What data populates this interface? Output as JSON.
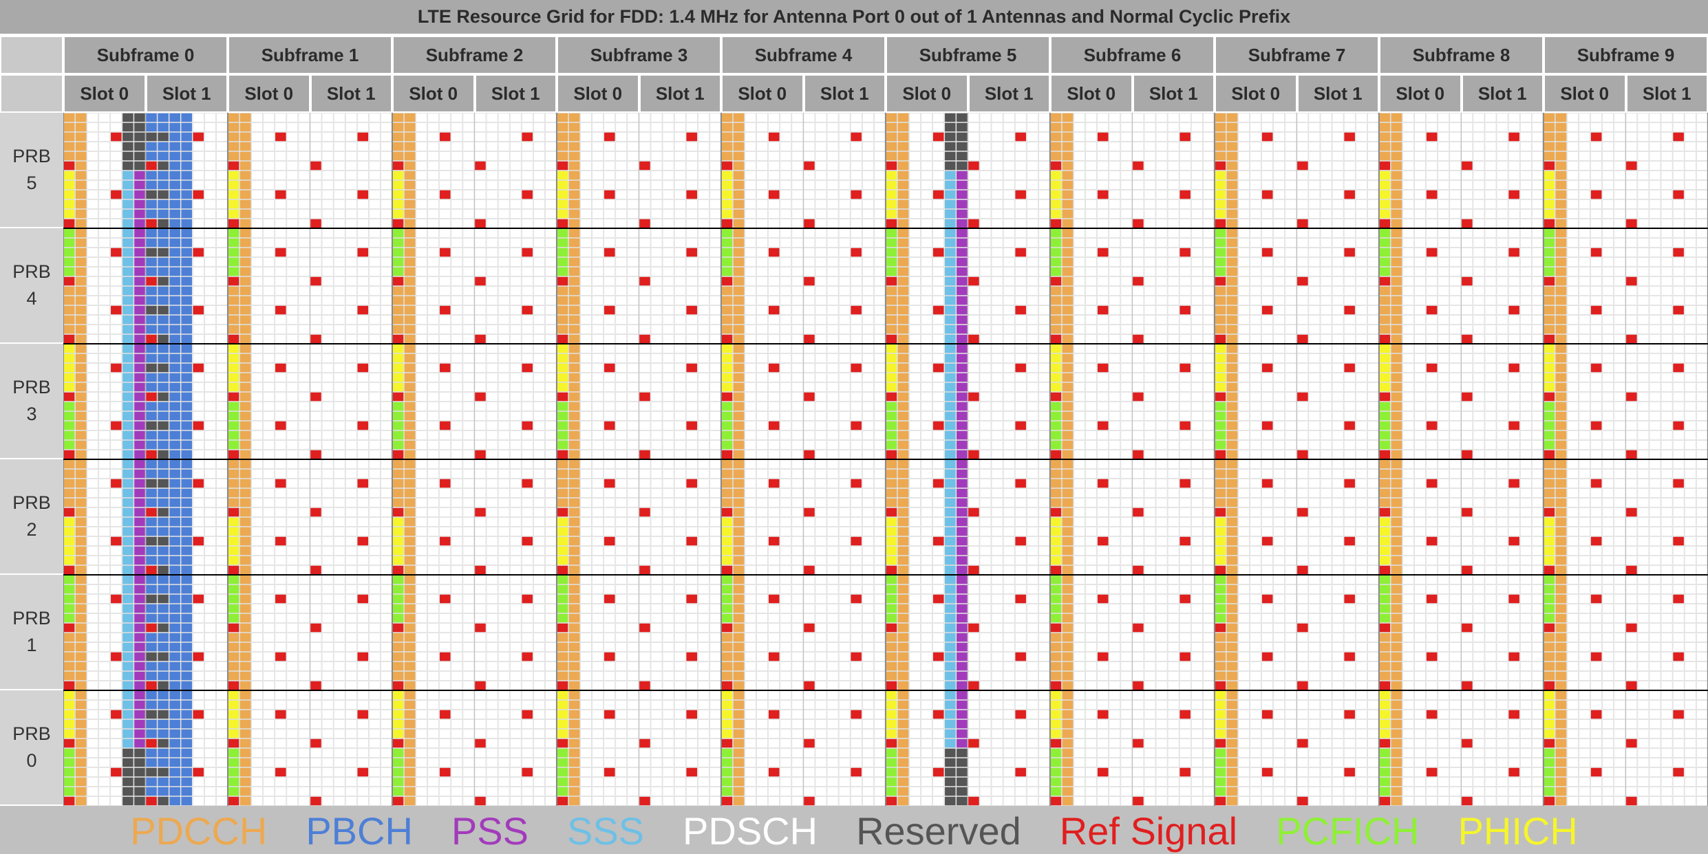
{
  "title": "LTE Resource Grid for FDD: 1.4 MHz for Antenna Port 0 out of 1 Antennas and Normal Cyclic Prefix",
  "subframes": [
    "Subframe 0",
    "Subframe 1",
    "Subframe 2",
    "Subframe 3",
    "Subframe 4",
    "Subframe 5",
    "Subframe 6",
    "Subframe 7",
    "Subframe 8",
    "Subframe 9"
  ],
  "slots": [
    "Slot 0",
    "Slot 1"
  ],
  "prbs": [
    {
      "label": "PRB",
      "num": "5"
    },
    {
      "label": "PRB",
      "num": "4"
    },
    {
      "label": "PRB",
      "num": "3"
    },
    {
      "label": "PRB",
      "num": "2"
    },
    {
      "label": "PRB",
      "num": "1"
    },
    {
      "label": "PRB",
      "num": "0"
    }
  ],
  "legend": [
    {
      "label": "PDCCH",
      "color": "#eca951"
    },
    {
      "label": "PBCH",
      "color": "#4d7fd6"
    },
    {
      "label": "PSS",
      "color": "#a23bbb"
    },
    {
      "label": "SSS",
      "color": "#6ec0e6"
    },
    {
      "label": "PDSCH",
      "color": "#ffffff"
    },
    {
      "label": "Reserved",
      "color": "#555555"
    },
    {
      "label": "Ref Signal",
      "color": "#e01f1f"
    },
    {
      "label": "PCFICH",
      "color": "#8ef036"
    },
    {
      "label": "PHICH",
      "color": "#f6f52c"
    }
  ],
  "grid_config": {
    "subframes": 10,
    "symbols_per_slot": 7,
    "subcarriers_per_prb": 12,
    "num_prb": 6,
    "pdcch_symbols": 2,
    "antenna_ports": 1
  }
}
